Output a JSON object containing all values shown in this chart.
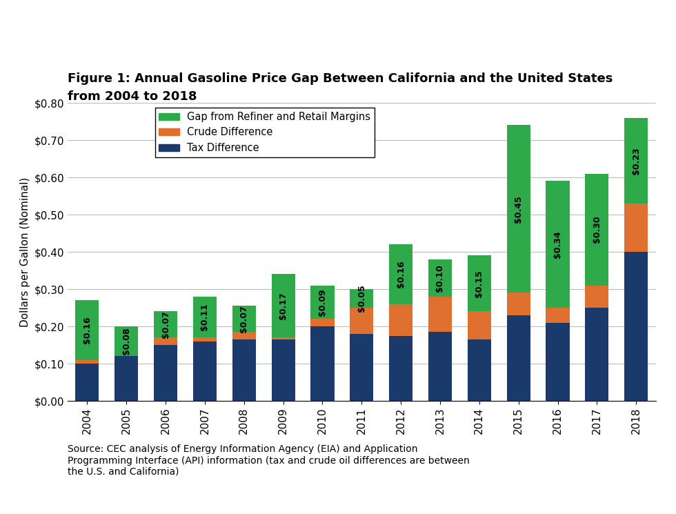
{
  "years": [
    "2004",
    "2005",
    "2006",
    "2007",
    "2008",
    "2009",
    "2010",
    "2011",
    "2012",
    "2013",
    "2014",
    "2015",
    "2016",
    "2017",
    "2018"
  ],
  "tax_diff": [
    0.1,
    0.12,
    0.15,
    0.16,
    0.165,
    0.165,
    0.2,
    0.18,
    0.175,
    0.185,
    0.165,
    0.23,
    0.21,
    0.25,
    0.4
  ],
  "crude_diff": [
    0.01,
    0.0,
    0.02,
    0.01,
    0.02,
    0.005,
    0.02,
    0.07,
    0.085,
    0.095,
    0.075,
    0.06,
    0.04,
    0.06,
    0.13
  ],
  "green_diff": [
    0.16,
    0.08,
    0.07,
    0.11,
    0.07,
    0.17,
    0.09,
    0.05,
    0.16,
    0.1,
    0.15,
    0.45,
    0.34,
    0.3,
    0.23
  ],
  "green_labels": [
    "$0.16",
    "$0.08",
    "$0.07",
    "$0.11",
    "$0.07",
    "$0.17",
    "$0.09",
    "$0.05",
    "$0.16",
    "$0.10",
    "$0.15",
    "$0.45",
    "$0.34",
    "$0.30",
    "$0.23"
  ],
  "color_tax": "#1a3a6b",
  "color_crude": "#e07030",
  "color_green": "#2eaa4a",
  "title_line1": "Figure 1: Annual Gasoline Price Gap Between California and the United States",
  "title_line2": "from 2004 to 2018",
  "ylabel": "Dollars per Gallon (Nominal)",
  "source_text": "Source: CEC analysis of Energy Information Agency (EIA) and Application\nProgramming Interface (API) information (tax and crude oil differences are between\nthe U.S. and California)",
  "legend_labels": [
    "Gap from Refiner and Retail Margins",
    "Crude Difference",
    "Tax Difference"
  ],
  "ylim": [
    0.0,
    0.8
  ],
  "yticks": [
    0.0,
    0.1,
    0.2,
    0.3,
    0.4,
    0.5,
    0.6,
    0.7,
    0.8
  ],
  "ytick_labels": [
    "$0.00",
    "$0.10",
    "$0.20",
    "$0.30",
    "$0.40",
    "$0.50",
    "$0.60",
    "$0.70",
    "$0.80"
  ]
}
